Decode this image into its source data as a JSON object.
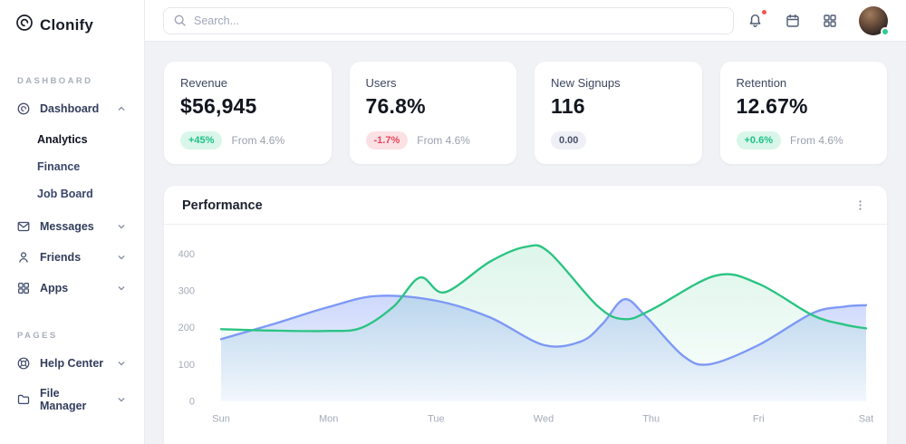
{
  "app": {
    "name": "Clonify"
  },
  "sidebar": {
    "sections": [
      {
        "label": "DASHBOARD",
        "items": [
          {
            "label": "Dashboard",
            "icon": "dashboard-icon",
            "chevron": "up",
            "expanded": true,
            "children": [
              {
                "label": "Analytics",
                "active": true
              },
              {
                "label": "Finance",
                "active": false
              },
              {
                "label": "Job Board",
                "active": false
              }
            ]
          },
          {
            "label": "Messages",
            "icon": "mail-icon",
            "chevron": "down",
            "children": []
          },
          {
            "label": "Friends",
            "icon": "user-icon",
            "chevron": "down",
            "children": []
          },
          {
            "label": "Apps",
            "icon": "apps-icon",
            "chevron": "down",
            "children": []
          }
        ]
      },
      {
        "label": "PAGES",
        "items": [
          {
            "label": "Help Center",
            "icon": "lifebuoy-icon",
            "chevron": "down",
            "children": []
          },
          {
            "label": "File Manager",
            "icon": "folder-icon",
            "chevron": "down",
            "children": []
          }
        ]
      }
    ]
  },
  "topbar": {
    "search": {
      "placeholder": "Search...",
      "icon": "search-icon"
    },
    "actions": [
      {
        "icon": "bell-icon",
        "notification_dot": true
      },
      {
        "icon": "calendar-icon",
        "notification_dot": false
      },
      {
        "icon": "apps-grid-icon",
        "notification_dot": false
      }
    ],
    "avatar": {
      "status": "online"
    }
  },
  "stats": [
    {
      "title": "Revenue",
      "value": "$56,945",
      "badge": "+45%",
      "badge_type": "positive",
      "note": "From 4.6%"
    },
    {
      "title": "Users",
      "value": "76.8%",
      "badge": "-1.7%",
      "badge_type": "negative",
      "note": "From 4.6%"
    },
    {
      "title": "New Signups",
      "value": "116",
      "badge": "0.00",
      "badge_type": "neutral",
      "note": ""
    },
    {
      "title": "Retention",
      "value": "12.67%",
      "badge": "+0.6%",
      "badge_type": "positive",
      "note": "From 4.6%"
    }
  ],
  "performance": {
    "title": "Performance",
    "menu_icon": "kebab-icon"
  },
  "chart_data": {
    "type": "area",
    "title": "Performance",
    "x_ticks": [
      "Sun",
      "Mon",
      "Tue",
      "Wed",
      "Thu",
      "Fri",
      "Sat"
    ],
    "y_ticks": [
      0,
      100,
      200,
      300,
      400
    ],
    "ylim": [
      0,
      440
    ],
    "grid": false,
    "legend": "none",
    "note": "points are [day_index 0=Sun..6=Sat (fractional), value] sampled along the smooth curves",
    "series": [
      {
        "name": "green-series",
        "color": "#2bc482",
        "points": [
          [
            0,
            195
          ],
          [
            0.5,
            191
          ],
          [
            1,
            190
          ],
          [
            1.3,
            198
          ],
          [
            1.6,
            255
          ],
          [
            1.85,
            335
          ],
          [
            2.08,
            295
          ],
          [
            2.5,
            378
          ],
          [
            2.83,
            418
          ],
          [
            3.05,
            404
          ],
          [
            3.5,
            258
          ],
          [
            3.75,
            222
          ],
          [
            4,
            247
          ],
          [
            4.6,
            340
          ],
          [
            5,
            318
          ],
          [
            5.5,
            233
          ],
          [
            5.8,
            207
          ],
          [
            6,
            197
          ]
        ]
      },
      {
        "name": "blue-series",
        "color": "#7d99f5",
        "points": [
          [
            0,
            168
          ],
          [
            0.5,
            210
          ],
          [
            1,
            255
          ],
          [
            1.45,
            285
          ],
          [
            2,
            272
          ],
          [
            2.5,
            227
          ],
          [
            3,
            152
          ],
          [
            3.35,
            162
          ],
          [
            3.55,
            210
          ],
          [
            3.75,
            276
          ],
          [
            3.95,
            230
          ],
          [
            4.3,
            122
          ],
          [
            4.55,
            100
          ],
          [
            5,
            152
          ],
          [
            5.5,
            238
          ],
          [
            5.8,
            256
          ],
          [
            6,
            260
          ]
        ]
      }
    ]
  },
  "colors": {
    "positive_text": "#1ec189",
    "positive_bg": "#d9f6ea",
    "negative_text": "#e8465e",
    "negative_bg": "#fbe0e4",
    "neutral_text": "#49516a",
    "neutral_bg": "#eef0f6",
    "line_green": "#2bc482",
    "line_blue": "#7d99f5",
    "notification_dot": "#f4564e",
    "online_dot": "#2ecc8f",
    "axis_label": "#a4aab8"
  }
}
